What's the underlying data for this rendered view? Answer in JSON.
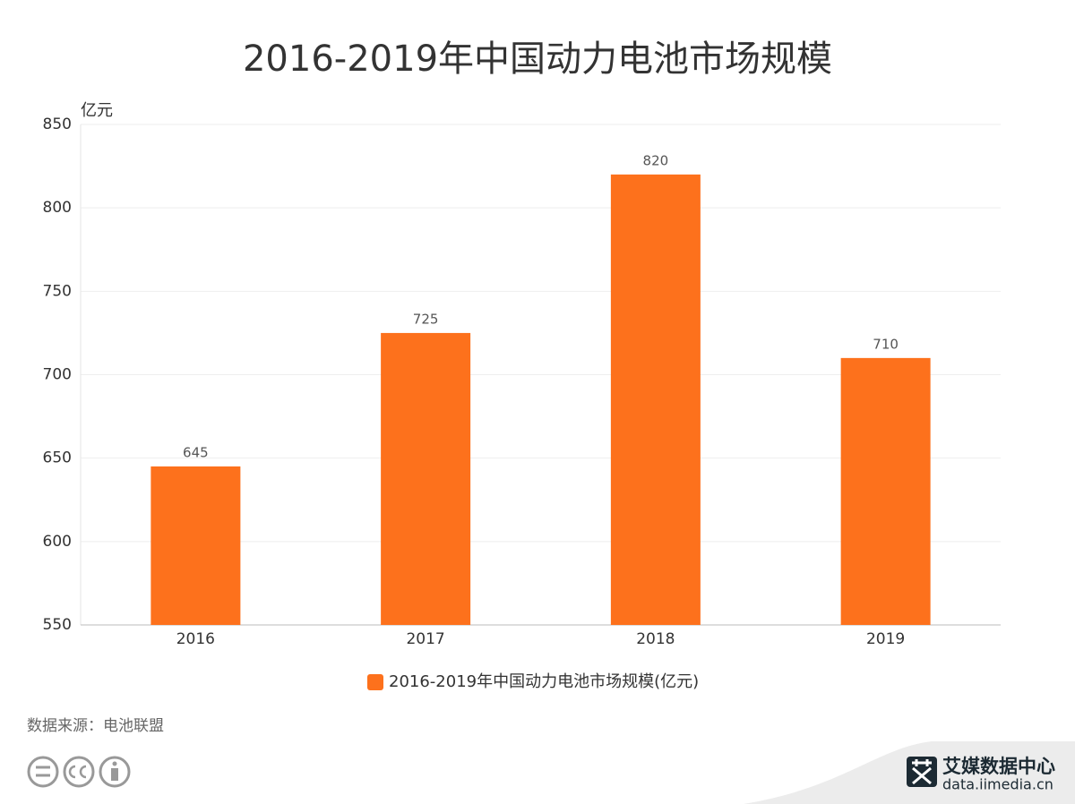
{
  "chart_data": {
    "type": "bar",
    "title": "2016-2019年中国动力电池市场规模",
    "y_label": "亿元",
    "categories": [
      "2016",
      "2017",
      "2018",
      "2019"
    ],
    "series": [
      {
        "name": "2016-2019年中国动力电池市场规模(亿元)",
        "color": "#fd711c",
        "values": [
          645,
          725,
          820,
          710
        ]
      }
    ],
    "ylim": [
      550,
      850
    ],
    "yticks": [
      550,
      600,
      650,
      700,
      750,
      800,
      850
    ],
    "grid": true,
    "source": "数据来源：电池联盟",
    "brand": "艾媒数据中心",
    "brand_url": "data.iimedia.cn"
  }
}
